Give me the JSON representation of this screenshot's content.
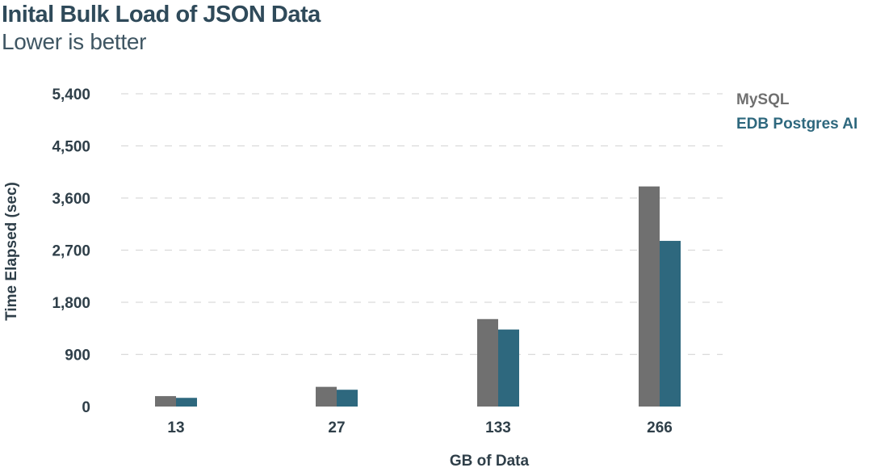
{
  "chart_data": {
    "type": "bar",
    "title": "Inital Bulk Load of JSON Data",
    "subtitle": "Lower is better",
    "xlabel": "GB of Data",
    "ylabel": "Time Elapsed (sec)",
    "categories": [
      "13",
      "27",
      "133",
      "266"
    ],
    "y_ticks": [
      "0",
      "900",
      "1,800",
      "2,700",
      "3,600",
      "4,500",
      "5,400"
    ],
    "ylim": [
      0,
      5400
    ],
    "grid": true,
    "legend_position": "top-right",
    "series": [
      {
        "name": "MySQL",
        "color": "#707070",
        "values": [
          180,
          340,
          1510,
          3800
        ]
      },
      {
        "name": "EDB Postgres AI",
        "color": "#2e687e",
        "values": [
          150,
          290,
          1330,
          2860
        ]
      }
    ]
  }
}
